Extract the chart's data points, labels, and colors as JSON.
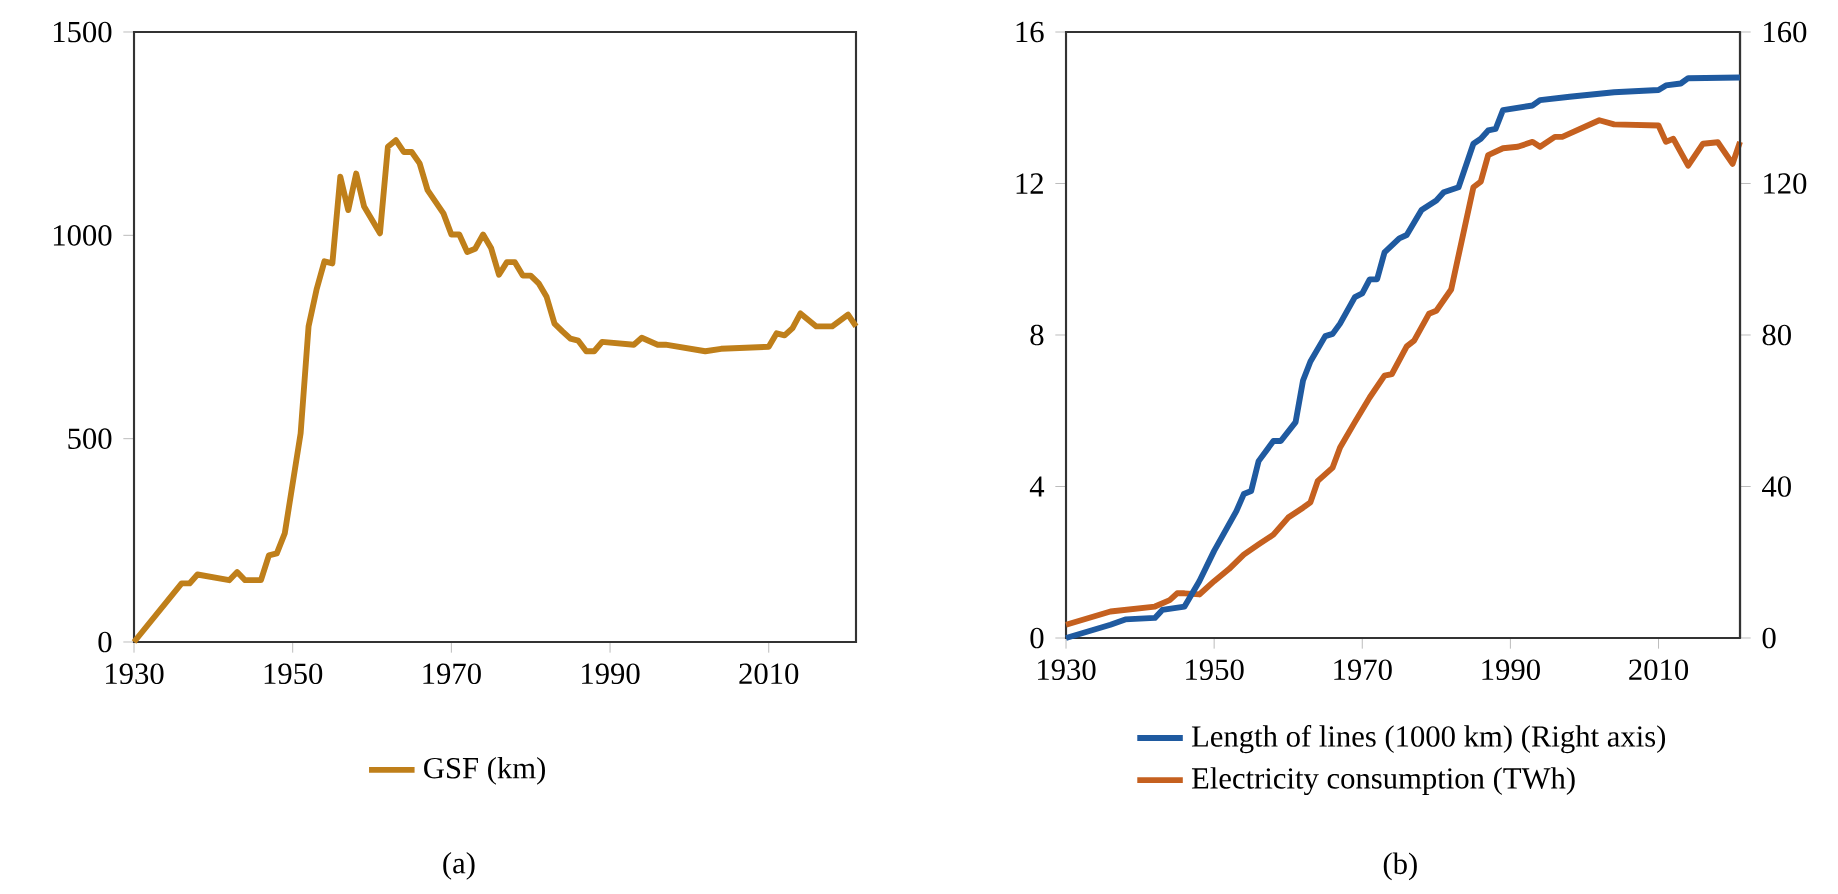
{
  "chart_data": [
    {
      "type": "line",
      "x": [
        1930,
        1936,
        1937,
        1938,
        1942,
        1943,
        1944,
        1946,
        1947,
        1948,
        1949,
        1951,
        1952,
        1953,
        1954,
        1955,
        1956,
        1957,
        1958,
        1959,
        1961,
        1962,
        1963,
        1964,
        1965,
        1966,
        1967,
        1969,
        1970,
        1971,
        1972,
        1973,
        1974,
        1975,
        1976,
        1977,
        1978,
        1979,
        1980,
        1981,
        1982,
        1983,
        1984,
        1985,
        1986,
        1987,
        1988,
        1989,
        1993,
        1994,
        1996,
        1997,
        2002,
        2004,
        2010,
        2011,
        2012,
        2013,
        2014,
        2016,
        2018,
        2020,
        2021
      ],
      "series": [
        {
          "name": "GSF (km)",
          "color": "#bf7f1a",
          "values": [
            0,
            144,
            144,
            166,
            152,
            172,
            152,
            152,
            213,
            218,
            267,
            513,
            776,
            866,
            936,
            931,
            1144,
            1062,
            1152,
            1071,
            1005,
            1218,
            1234,
            1205,
            1205,
            1177,
            1111,
            1054,
            1002,
            1002,
            959,
            967,
            1002,
            969,
            903,
            934,
            934,
            901,
            901,
            882,
            849,
            783,
            764,
            746,
            741,
            715,
            715,
            738,
            731,
            748,
            731,
            731,
            715,
            721,
            726,
            759,
            754,
            772,
            808,
            776,
            776,
            805,
            776
          ]
        }
      ],
      "xlim": [
        1930,
        2021
      ],
      "xticks": [
        1930,
        1950,
        1970,
        1990,
        2010
      ],
      "ylim": [
        0,
        1500
      ],
      "yticks": [
        0,
        500,
        1000,
        1500
      ],
      "legend": "bottom",
      "annotations": [
        "(a)"
      ]
    },
    {
      "type": "line",
      "series": [
        {
          "name": "Length of lines (1000 km) (Right axis)",
          "color": "#1f5aa0",
          "axis": "y2",
          "x": [
            1930,
            1936,
            1938,
            1942,
            1943,
            1946,
            1948,
            1950,
            1953,
            1954,
            1955,
            1956,
            1958,
            1959,
            1961,
            1962,
            1963,
            1965,
            1966,
            1967,
            1969,
            1970,
            1971,
            1972,
            1973,
            1975,
            1976,
            1978,
            1980,
            1981,
            1983,
            1985,
            1986,
            1987,
            1988,
            1989,
            1993,
            1994,
            1998,
            2004,
            2010,
            2011,
            2013,
            2014,
            2021
          ],
          "values": [
            0,
            3.5,
            4.9,
            5.3,
            7.4,
            8.3,
            15,
            23,
            33.5,
            38,
            38.8,
            46.7,
            52,
            52,
            57,
            68,
            73,
            79.7,
            80.3,
            83,
            90,
            91,
            94.7,
            94.7,
            101.8,
            105.5,
            106.4,
            113,
            115.5,
            117.7,
            119,
            130.5,
            131.8,
            134,
            134.4,
            139.4,
            140.6,
            142,
            142.9,
            144.1,
            144.7,
            145.9,
            146.4,
            147.8,
            148
          ]
        },
        {
          "name": "Electricity consumption (TWh)",
          "color": "#c5601f",
          "x": [
            1930,
            1936,
            1942,
            1944,
            1945,
            1946,
            1948,
            1950,
            1952,
            1954,
            1956,
            1958,
            1960,
            1962,
            1963,
            1964,
            1966,
            1967,
            1969,
            1971,
            1973,
            1974,
            1976,
            1977,
            1979,
            1980,
            1982,
            1983,
            1985,
            1986,
            1987,
            1989,
            1991,
            1993,
            1994,
            1996,
            1997,
            2002,
            2004,
            2010,
            2011,
            2012,
            2014,
            2016,
            2018,
            2020,
            2021
          ],
          "values": [
            0.35,
            0.7,
            0.83,
            1.0,
            1.18,
            1.18,
            1.15,
            1.5,
            1.82,
            2.2,
            2.47,
            2.73,
            3.18,
            3.44,
            3.58,
            4.15,
            4.5,
            5.03,
            5.7,
            6.35,
            6.93,
            6.97,
            7.7,
            7.85,
            8.56,
            8.64,
            9.2,
            10.1,
            11.9,
            12.05,
            12.75,
            12.93,
            12.97,
            13.1,
            12.97,
            13.23,
            13.23,
            13.67,
            13.56,
            13.53,
            13.1,
            13.18,
            12.47,
            13.05,
            13.09,
            12.52,
            13.1
          ]
        }
      ],
      "xlim": [
        1930,
        2021
      ],
      "xticks": [
        1930,
        1950,
        1970,
        1990,
        2010
      ],
      "ylim": [
        0,
        16
      ],
      "yticks": [
        0,
        4,
        8,
        12,
        16
      ],
      "y2lim": [
        0,
        160
      ],
      "y2ticks": [
        0,
        40,
        80,
        120,
        160
      ],
      "legend": "bottom",
      "annotations": [
        "(b)"
      ]
    }
  ]
}
